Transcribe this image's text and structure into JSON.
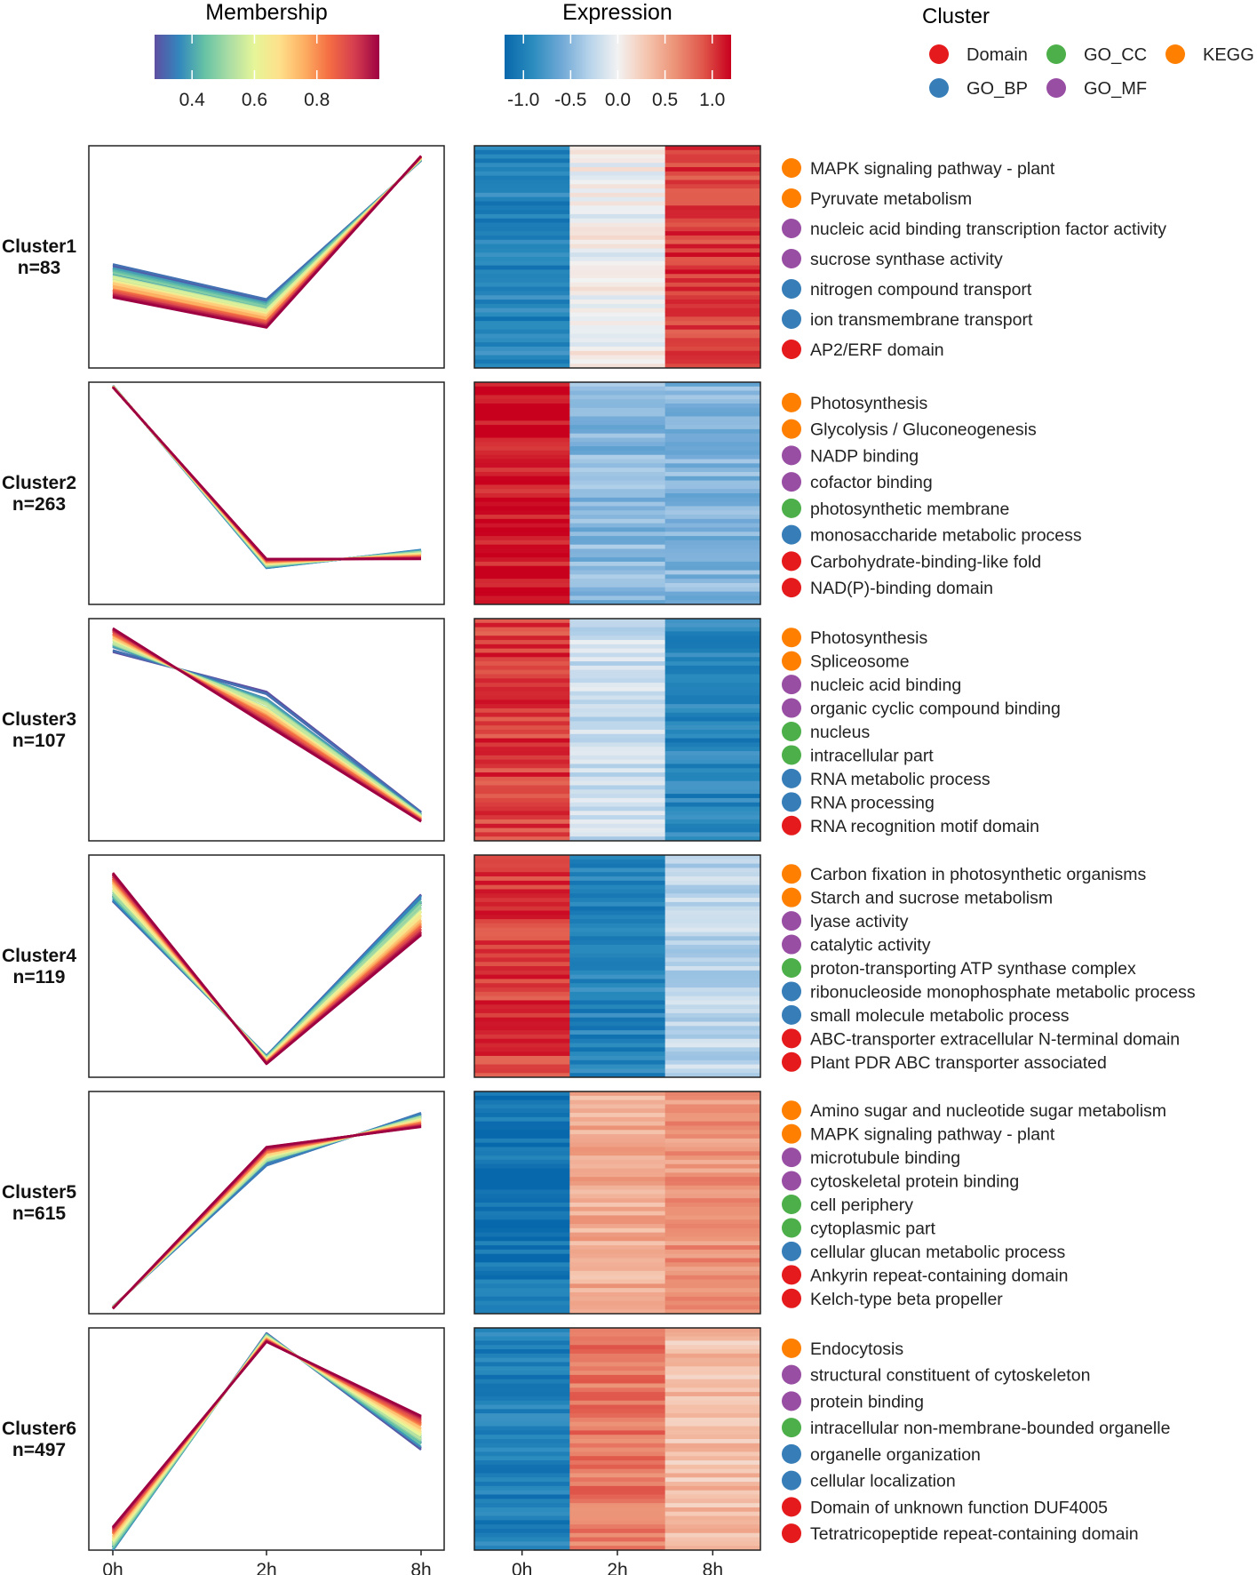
{
  "legends": {
    "membership": {
      "title": "Membership",
      "ticks": [
        {
          "v": 0.4,
          "label": "0.4"
        },
        {
          "v": 0.6,
          "label": "0.6"
        },
        {
          "v": 0.8,
          "label": "0.8"
        }
      ],
      "range": [
        0.28,
        1.0
      ]
    },
    "expression": {
      "title": "Expression",
      "ticks": [
        {
          "v": -1.0,
          "label": "-1.0"
        },
        {
          "v": -0.5,
          "label": "-0.5"
        },
        {
          "v": 0.0,
          "label": "0.0"
        },
        {
          "v": 0.5,
          "label": "0.5"
        },
        {
          "v": 1.0,
          "label": "1.0"
        }
      ],
      "range": [
        -1.2,
        1.2
      ]
    },
    "cluster": {
      "title": "Cluster",
      "categories": [
        {
          "label": "Domain",
          "color": "#e41a1c"
        },
        {
          "label": "GO_CC",
          "color": "#4daf4a"
        },
        {
          "label": "KEGG",
          "color": "#ff7f00"
        },
        {
          "label": "GO_BP",
          "color": "#377eb8"
        },
        {
          "label": "GO_MF",
          "color": "#984ea3"
        }
      ]
    }
  },
  "colors": {
    "Domain": "#e41a1c",
    "GO_BP": "#377eb8",
    "GO_CC": "#4daf4a",
    "GO_MF": "#984ea3",
    "KEGG": "#ff7f00"
  },
  "axis": {
    "timepoints": [
      "0h",
      "2h",
      "8h"
    ]
  },
  "chart_data": {
    "type": "line",
    "title": "",
    "xlabel": "",
    "ylabel": "",
    "categories": [
      "0h",
      "2h",
      "8h"
    ],
    "clusters": [
      {
        "label": "Cluster1",
        "n_label": "n=83",
        "mean": [
          -0.4,
          -0.7,
          1.0
        ],
        "spread": [
          0.35,
          0.3,
          0.05
        ],
        "sign": [
          1,
          1,
          -1
        ],
        "ylim": [
          -1.1,
          1.1
        ],
        "heatmap": [
          -0.95,
          0.0,
          1.0
        ],
        "terms": [
          {
            "category": "KEGG",
            "label": "MAPK signaling pathway - plant"
          },
          {
            "category": "KEGG",
            "label": "Pyruvate metabolism"
          },
          {
            "category": "GO_MF",
            "label": "nucleic acid binding transcription factor activity"
          },
          {
            "category": "GO_MF",
            "label": "sucrose synthase activity"
          },
          {
            "category": "GO_BP",
            "label": "nitrogen compound transport"
          },
          {
            "category": "GO_BP",
            "label": "ion transmembrane transport"
          },
          {
            "category": "Domain",
            "label": "AP2/ERF domain"
          }
        ]
      },
      {
        "label": "Cluster2",
        "n_label": "n=263",
        "mean": [
          1.15,
          -0.55,
          -0.55
        ],
        "spread": [
          0.02,
          0.1,
          0.1
        ],
        "sign": [
          1,
          -1,
          1
        ],
        "ylim": [
          -1.0,
          1.2
        ],
        "heatmap": [
          1.15,
          -0.5,
          -0.5
        ],
        "terms": [
          {
            "category": "KEGG",
            "label": "Photosynthesis"
          },
          {
            "category": "KEGG",
            "label": "Glycolysis / Gluconeogenesis"
          },
          {
            "category": "GO_MF",
            "label": "NADP binding"
          },
          {
            "category": "GO_MF",
            "label": "cofactor binding"
          },
          {
            "category": "GO_CC",
            "label": "photosynthetic membrane"
          },
          {
            "category": "GO_BP",
            "label": "monosaccharide metabolic process"
          },
          {
            "category": "Domain",
            "label": "Carbohydrate-binding-like fold"
          },
          {
            "category": "Domain",
            "label": "NAD(P)-binding domain"
          }
        ]
      },
      {
        "label": "Cluster3",
        "n_label": "n=107",
        "mean": [
          1.0,
          0.0,
          -1.0
        ],
        "spread": [
          0.25,
          0.35,
          0.1
        ],
        "sign": [
          -1,
          1,
          1
        ],
        "ylim": [
          -1.2,
          1.1
        ],
        "heatmap": [
          1.0,
          -0.2,
          -0.95
        ],
        "terms": [
          {
            "category": "KEGG",
            "label": "Photosynthesis"
          },
          {
            "category": "KEGG",
            "label": "Spliceosome"
          },
          {
            "category": "GO_MF",
            "label": "nucleic acid binding"
          },
          {
            "category": "GO_MF",
            "label": "organic cyclic compound binding"
          },
          {
            "category": "GO_CC",
            "label": "nucleus"
          },
          {
            "category": "GO_CC",
            "label": "intracellular part"
          },
          {
            "category": "GO_BP",
            "label": "RNA metabolic process"
          },
          {
            "category": "GO_BP",
            "label": "RNA processing"
          },
          {
            "category": "Domain",
            "label": "RNA recognition motif domain"
          }
        ]
      },
      {
        "label": "Cluster4",
        "n_label": "n=119",
        "mean": [
          1.0,
          -1.15,
          0.3
        ],
        "spread": [
          0.35,
          0.1,
          0.5
        ],
        "sign": [
          -1,
          1,
          1
        ],
        "ylim": [
          -1.3,
          1.2
        ],
        "heatmap": [
          1.0,
          -0.95,
          -0.25
        ],
        "terms": [
          {
            "category": "KEGG",
            "label": "Carbon fixation in photosynthetic organisms"
          },
          {
            "category": "KEGG",
            "label": "Starch and sucrose metabolism"
          },
          {
            "category": "GO_MF",
            "label": "lyase activity"
          },
          {
            "category": "GO_MF",
            "label": "catalytic activity"
          },
          {
            "category": "GO_CC",
            "label": "proton-transporting ATP synthase complex"
          },
          {
            "category": "GO_BP",
            "label": "ribonucleoside monophosphate metabolic process"
          },
          {
            "category": "GO_BP",
            "label": "small molecule metabolic process"
          },
          {
            "category": "Domain",
            "label": "ABC-transporter extracellular N-terminal domain"
          },
          {
            "category": "Domain",
            "label": "Plant PDR ABC transporter associated"
          }
        ]
      },
      {
        "label": "Cluster5",
        "n_label": "n=615",
        "mean": [
          -1.15,
          0.45,
          0.65
        ],
        "spread": [
          0.02,
          0.2,
          0.15
        ],
        "sign": [
          1,
          -1,
          1
        ],
        "ylim": [
          -1.2,
          1.0
        ],
        "heatmap": [
          -1.1,
          0.45,
          0.6
        ],
        "terms": [
          {
            "category": "KEGG",
            "label": "Amino sugar and nucleotide sugar metabolism"
          },
          {
            "category": "KEGG",
            "label": "MAPK signaling pathway - plant"
          },
          {
            "category": "GO_MF",
            "label": "microtubule binding"
          },
          {
            "category": "GO_MF",
            "label": "cytoskeletal protein binding"
          },
          {
            "category": "GO_CC",
            "label": "cell periphery"
          },
          {
            "category": "GO_CC",
            "label": "cytoplasmic part"
          },
          {
            "category": "GO_BP",
            "label": "cellular glucan metabolic process"
          },
          {
            "category": "Domain",
            "label": "Ankyrin repeat-containing domain"
          },
          {
            "category": "Domain",
            "label": "Kelch-type beta propeller"
          }
        ]
      },
      {
        "label": "Cluster6",
        "n_label": "n=497",
        "mean": [
          -0.95,
          1.05,
          0.25
        ],
        "spread": [
          0.3,
          0.1,
          0.4
        ],
        "sign": [
          -1,
          1,
          -1
        ],
        "ylim": [
          -1.2,
          1.2
        ],
        "heatmap": [
          -1.0,
          0.75,
          0.35
        ],
        "terms": [
          {
            "category": "KEGG",
            "label": "Endocytosis"
          },
          {
            "category": "GO_MF",
            "label": "structural constituent of cytoskeleton"
          },
          {
            "category": "GO_MF",
            "label": "protein binding"
          },
          {
            "category": "GO_CC",
            "label": "intracellular non-membrane-bounded organelle"
          },
          {
            "category": "GO_BP",
            "label": "organelle organization"
          },
          {
            "category": "GO_BP",
            "label": "cellular localization"
          },
          {
            "category": "Domain",
            "label": "Domain of unknown function DUF4005"
          },
          {
            "category": "Domain",
            "label": "Tetratricopeptide repeat-containing domain"
          }
        ]
      }
    ]
  }
}
